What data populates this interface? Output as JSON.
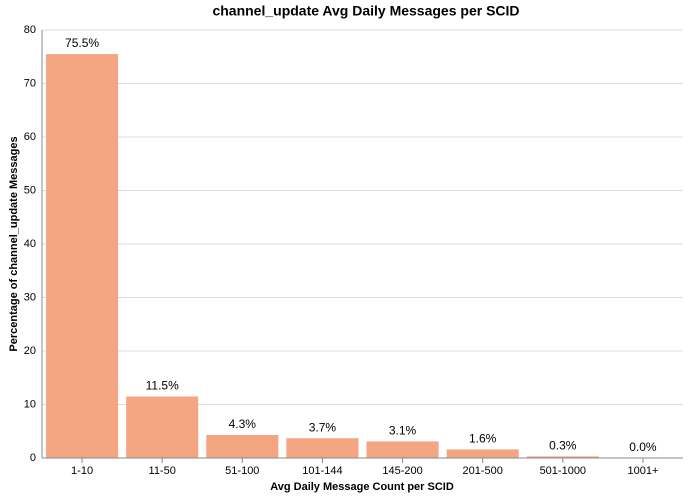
{
  "chart_data": {
    "type": "bar",
    "title": "channel_update Avg Daily Messages per SCID",
    "x_label": "Avg Daily Message Count per SCID",
    "y_label": "Percentage of channel_update Messages",
    "categories": [
      "1-10",
      "11-50",
      "51-100",
      "101-144",
      "145-200",
      "201-500",
      "501-1000",
      "1001+"
    ],
    "values": [
      75.5,
      11.5,
      4.3,
      3.7,
      3.1,
      1.6,
      0.3,
      0.0
    ],
    "value_labels": [
      "75.5%",
      "11.5%",
      "4.3%",
      "3.7%",
      "3.1%",
      "1.6%",
      "0.3%",
      "0.0%"
    ],
    "color": "#f4a582",
    "ylim": [
      0,
      80
    ],
    "yticks": [
      0,
      10,
      20,
      30,
      40,
      50,
      60,
      70,
      80
    ],
    "grid": true
  }
}
